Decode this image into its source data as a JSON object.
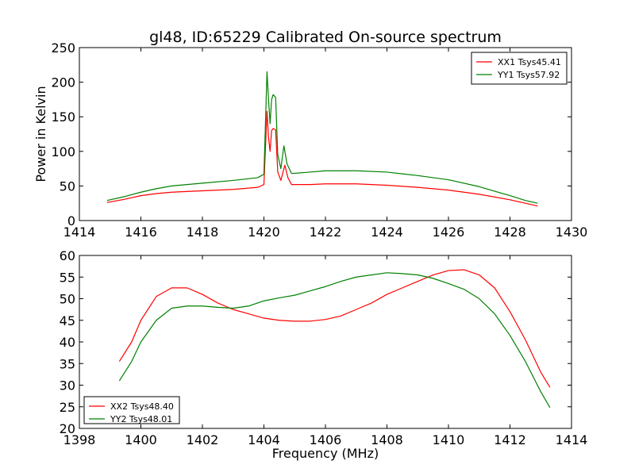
{
  "chart_data": [
    {
      "type": "line",
      "title": "gl48, ID:65229 Calibrated On-source spectrum",
      "xlabel": "",
      "ylabel": "Power in Kelvin",
      "xlim": [
        1414,
        1430
      ],
      "ylim": [
        0,
        250
      ],
      "xticks": [
        1414,
        1416,
        1418,
        1420,
        1422,
        1424,
        1426,
        1428,
        1430
      ],
      "yticks": [
        0,
        50,
        100,
        150,
        200,
        250
      ],
      "grid": false,
      "legend_position": "top-right",
      "series": [
        {
          "name": "XX1 Tsys45.41",
          "color": "#ff0000",
          "points": [
            [
              1414.9,
              26
            ],
            [
              1415.5,
              31
            ],
            [
              1416,
              36
            ],
            [
              1416.5,
              39
            ],
            [
              1417,
              41
            ],
            [
              1418,
              43
            ],
            [
              1419,
              45
            ],
            [
              1419.8,
              48
            ],
            [
              1420.0,
              52
            ],
            [
              1420.1,
              158
            ],
            [
              1420.15,
              120
            ],
            [
              1420.2,
              100
            ],
            [
              1420.25,
              130
            ],
            [
              1420.3,
              133
            ],
            [
              1420.38,
              131
            ],
            [
              1420.45,
              70
            ],
            [
              1420.55,
              58
            ],
            [
              1420.68,
              80
            ],
            [
              1420.78,
              62
            ],
            [
              1420.9,
              52
            ],
            [
              1421.5,
              52
            ],
            [
              1422,
              53
            ],
            [
              1423,
              53
            ],
            [
              1424,
              51
            ],
            [
              1425,
              48
            ],
            [
              1426,
              44
            ],
            [
              1427,
              38
            ],
            [
              1428,
              30
            ],
            [
              1428.5,
              25
            ],
            [
              1428.9,
              21
            ]
          ]
        },
        {
          "name": "YY1 Tsys57.92",
          "color": "#008000",
          "points": [
            [
              1414.9,
              29
            ],
            [
              1415.5,
              35
            ],
            [
              1416,
              41
            ],
            [
              1416.5,
              46
            ],
            [
              1417,
              50
            ],
            [
              1418,
              54
            ],
            [
              1419,
              58
            ],
            [
              1419.8,
              62
            ],
            [
              1420.0,
              67
            ],
            [
              1420.1,
              215
            ],
            [
              1420.15,
              175
            ],
            [
              1420.2,
              140
            ],
            [
              1420.25,
              175
            ],
            [
              1420.3,
              182
            ],
            [
              1420.38,
              178
            ],
            [
              1420.45,
              95
            ],
            [
              1420.55,
              75
            ],
            [
              1420.65,
              108
            ],
            [
              1420.75,
              82
            ],
            [
              1420.9,
              68
            ],
            [
              1421.5,
              70
            ],
            [
              1422,
              72
            ],
            [
              1423,
              72
            ],
            [
              1424,
              70
            ],
            [
              1425,
              65
            ],
            [
              1426,
              59
            ],
            [
              1427,
              49
            ],
            [
              1428,
              36
            ],
            [
              1428.5,
              29
            ],
            [
              1428.9,
              25
            ]
          ]
        }
      ]
    },
    {
      "type": "line",
      "title": "",
      "xlabel": "Frequency (MHz)",
      "ylabel": "",
      "xlim": [
        1398,
        1414
      ],
      "ylim": [
        20,
        60
      ],
      "xticks": [
        1398,
        1400,
        1402,
        1404,
        1406,
        1408,
        1410,
        1412,
        1414
      ],
      "yticks": [
        20,
        25,
        30,
        35,
        40,
        45,
        50,
        55,
        60
      ],
      "grid": false,
      "legend_position": "bottom-left",
      "series": [
        {
          "name": "XX2 Tsys48.40",
          "color": "#ff0000",
          "points": [
            [
              1399.3,
              35.5
            ],
            [
              1399.7,
              40
            ],
            [
              1400,
              45
            ],
            [
              1400.5,
              50.5
            ],
            [
              1401,
              52.5
            ],
            [
              1401.5,
              52.5
            ],
            [
              1402,
              51
            ],
            [
              1402.5,
              49
            ],
            [
              1403,
              47.5
            ],
            [
              1403.5,
              46.5
            ],
            [
              1404,
              45.5
            ],
            [
              1404.5,
              45
            ],
            [
              1405,
              44.8
            ],
            [
              1405.5,
              44.8
            ],
            [
              1406,
              45.2
            ],
            [
              1406.5,
              46
            ],
            [
              1407,
              47.5
            ],
            [
              1407.5,
              49
            ],
            [
              1408,
              51
            ],
            [
              1408.5,
              52.5
            ],
            [
              1409,
              54
            ],
            [
              1409.5,
              55.5
            ],
            [
              1410,
              56.5
            ],
            [
              1410.5,
              56.7
            ],
            [
              1411,
              55.5
            ],
            [
              1411.5,
              52.5
            ],
            [
              1412,
              47
            ],
            [
              1412.5,
              40.5
            ],
            [
              1413,
              33
            ],
            [
              1413.3,
              29.5
            ]
          ]
        },
        {
          "name": "YY2 Tsys48.01",
          "color": "#008000",
          "points": [
            [
              1399.3,
              31
            ],
            [
              1399.7,
              35.5
            ],
            [
              1400,
              40
            ],
            [
              1400.5,
              45
            ],
            [
              1401,
              47.8
            ],
            [
              1401.5,
              48.3
            ],
            [
              1402,
              48.3
            ],
            [
              1402.5,
              48
            ],
            [
              1403,
              47.8
            ],
            [
              1403.5,
              48.3
            ],
            [
              1404,
              49.5
            ],
            [
              1404.5,
              50.2
            ],
            [
              1405,
              50.8
            ],
            [
              1405.5,
              51.8
            ],
            [
              1406,
              52.8
            ],
            [
              1406.5,
              54
            ],
            [
              1407,
              55
            ],
            [
              1407.5,
              55.5
            ],
            [
              1408,
              56
            ],
            [
              1408.5,
              55.8
            ],
            [
              1409,
              55.5
            ],
            [
              1409.5,
              54.7
            ],
            [
              1410,
              53.5
            ],
            [
              1410.5,
              52.2
            ],
            [
              1411,
              50
            ],
            [
              1411.5,
              46.5
            ],
            [
              1412,
              41.5
            ],
            [
              1412.5,
              35.5
            ],
            [
              1413,
              28.5
            ],
            [
              1413.3,
              24.8
            ]
          ]
        }
      ]
    }
  ]
}
